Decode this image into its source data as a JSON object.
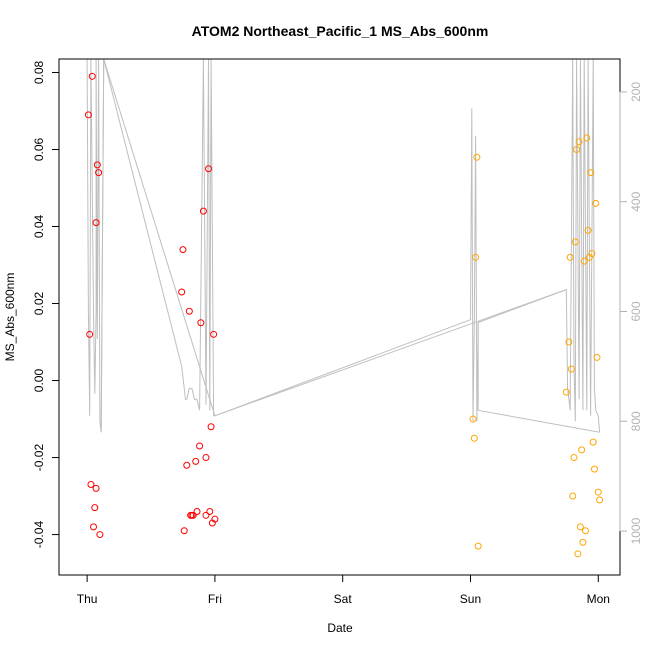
{
  "chart_data": {
    "type": "scatter",
    "title": "ATOM2 Northeast_Pacific_1 MS_Abs_600nm",
    "xlabel": "Date",
    "ylabel": "MS_Abs_600nm",
    "x_ticks": [
      "Thu",
      "Fri",
      "Sat",
      "Sun",
      "Mon"
    ],
    "xlim_days": [
      -0.22,
      4.17
    ],
    "ylim": [
      -0.0505,
      0.0835
    ],
    "y_ticks": [
      "-0.04",
      "-0.02",
      "0.00",
      "0.02",
      "0.04",
      "0.06",
      "0.08"
    ],
    "y_tick_values": [
      -0.04,
      -0.02,
      0.0,
      0.02,
      0.04,
      0.06,
      0.08
    ],
    "y2_ticks": [
      "200",
      "400",
      "600",
      "800",
      "1000"
    ],
    "y2_tick_values": [
      200,
      400,
      600,
      800,
      1000
    ],
    "y2_reversed": true,
    "y2lim": [
      1080,
      140
    ],
    "grid": false,
    "colors": {
      "series_red": "#ff0000",
      "series_orange": "#ffa500",
      "depth_line": "#bebebe",
      "right_axis": "#b3b3b3"
    },
    "series": [
      {
        "color": "#ff0000",
        "marker": "open-circle",
        "points": [
          [
            0.01,
            0.069
          ],
          [
            0.02,
            0.012
          ],
          [
            0.03,
            -0.027
          ],
          [
            0.04,
            0.079
          ],
          [
            0.05,
            -0.038
          ],
          [
            0.06,
            -0.033
          ],
          [
            0.07,
            -0.028
          ],
          [
            0.07,
            0.041
          ],
          [
            0.08,
            0.056
          ],
          [
            0.09,
            0.054
          ],
          [
            0.1,
            -0.04
          ],
          [
            0.74,
            0.023
          ],
          [
            0.75,
            0.034
          ],
          [
            0.76,
            -0.039
          ],
          [
            0.78,
            -0.022
          ],
          [
            0.8,
            0.018
          ],
          [
            0.81,
            -0.035
          ],
          [
            0.82,
            -0.035
          ],
          [
            0.83,
            -0.035
          ],
          [
            0.85,
            -0.021
          ],
          [
            0.86,
            -0.034
          ],
          [
            0.88,
            -0.017
          ],
          [
            0.89,
            0.015
          ],
          [
            0.91,
            0.044
          ],
          [
            0.93,
            -0.02
          ],
          [
            0.93,
            -0.035
          ],
          [
            0.95,
            0.055
          ],
          [
            0.96,
            -0.034
          ],
          [
            0.97,
            -0.012
          ],
          [
            0.98,
            -0.037
          ],
          [
            0.99,
            0.012
          ],
          [
            1.0,
            -0.036
          ]
        ]
      },
      {
        "color": "#ffa500",
        "marker": "open-circle",
        "points": [
          [
            3.02,
            -0.01
          ],
          [
            3.03,
            -0.015
          ],
          [
            3.04,
            0.032
          ],
          [
            3.05,
            0.058
          ],
          [
            3.06,
            -0.043
          ],
          [
            3.75,
            -0.003
          ],
          [
            3.77,
            0.01
          ],
          [
            3.78,
            0.032
          ],
          [
            3.79,
            0.003
          ],
          [
            3.8,
            -0.03
          ],
          [
            3.81,
            -0.02
          ],
          [
            3.82,
            0.036
          ],
          [
            3.83,
            0.06
          ],
          [
            3.84,
            -0.045
          ],
          [
            3.85,
            0.062
          ],
          [
            3.86,
            -0.038
          ],
          [
            3.87,
            -0.018
          ],
          [
            3.88,
            -0.042
          ],
          [
            3.89,
            0.031
          ],
          [
            3.9,
            -0.039
          ],
          [
            3.91,
            0.063
          ],
          [
            3.92,
            0.039
          ],
          [
            3.93,
            0.032
          ],
          [
            3.94,
            0.054
          ],
          [
            3.95,
            0.033
          ],
          [
            3.96,
            -0.016
          ],
          [
            3.97,
            -0.023
          ],
          [
            3.98,
            0.046
          ],
          [
            3.99,
            0.006
          ],
          [
            4.0,
            -0.029
          ],
          [
            4.01,
            -0.031
          ]
        ]
      }
    ],
    "depth_profile": {
      "axis": "right",
      "color": "#bebebe",
      "points": [
        [
          0.0,
          140
        ],
        [
          0.01,
          600
        ],
        [
          0.02,
          790
        ],
        [
          0.03,
          140
        ],
        [
          0.05,
          600
        ],
        [
          0.06,
          750
        ],
        [
          0.07,
          600
        ],
        [
          0.07,
          140
        ],
        [
          0.08,
          650
        ],
        [
          0.09,
          140
        ],
        [
          0.1,
          800
        ],
        [
          0.11,
          820
        ],
        [
          0.13,
          140
        ],
        [
          0.74,
          700
        ],
        [
          0.77,
          760
        ],
        [
          0.78,
          760
        ],
        [
          0.8,
          740
        ],
        [
          0.82,
          740
        ],
        [
          0.84,
          760
        ],
        [
          0.86,
          760
        ],
        [
          0.88,
          780
        ],
        [
          0.91,
          140
        ],
        [
          0.93,
          770
        ],
        [
          0.95,
          140
        ],
        [
          0.96,
          780
        ],
        [
          0.97,
          140
        ],
        [
          0.99,
          790
        ],
        [
          1.0,
          790
        ],
        [
          3.0,
          615
        ],
        [
          3.01,
          230
        ],
        [
          3.02,
          800
        ],
        [
          3.03,
          620
        ],
        [
          3.04,
          280
        ],
        [
          3.05,
          800
        ],
        [
          3.06,
          620
        ],
        [
          3.75,
          560
        ],
        [
          3.76,
          740
        ],
        [
          3.78,
          780
        ],
        [
          3.8,
          140
        ],
        [
          3.81,
          700
        ],
        [
          3.82,
          800
        ],
        [
          3.83,
          140
        ],
        [
          3.85,
          760
        ],
        [
          3.86,
          140
        ],
        [
          3.88,
          780
        ],
        [
          3.89,
          140
        ],
        [
          3.91,
          780
        ],
        [
          3.92,
          140
        ],
        [
          3.94,
          790
        ],
        [
          3.96,
          140
        ],
        [
          3.97,
          740
        ],
        [
          3.98,
          780
        ],
        [
          4.0,
          790
        ],
        [
          4.01,
          820
        ]
      ],
      "segments": [
        [
          [
            0.11,
            820
          ],
          [
            0.13,
            140
          ]
        ],
        [
          [
            0.13,
            140
          ],
          [
            1.0,
            790
          ]
        ],
        [
          [
            1.0,
            790
          ],
          [
            3.75,
            560
          ]
        ],
        [
          [
            3.06,
            620
          ],
          [
            3.06,
            780
          ]
        ],
        [
          [
            3.06,
            780
          ],
          [
            4.01,
            820
          ]
        ]
      ]
    }
  }
}
